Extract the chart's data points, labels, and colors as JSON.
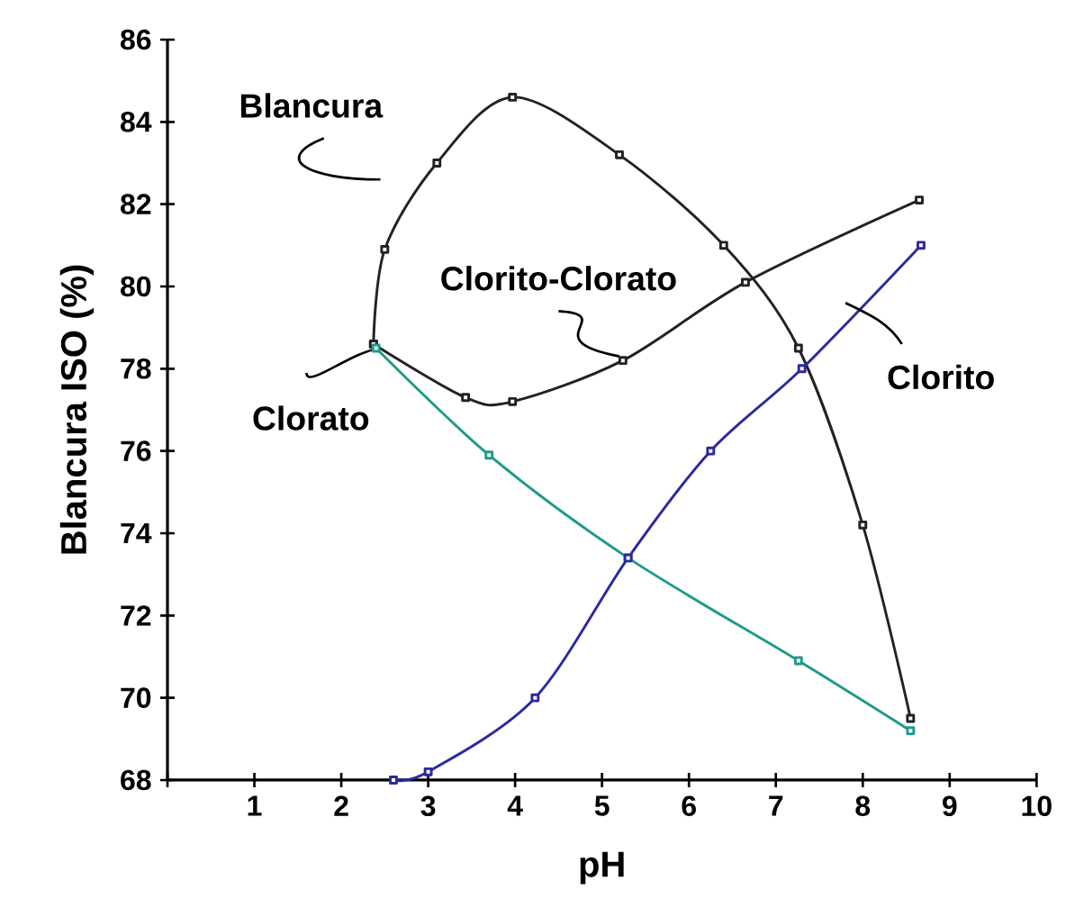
{
  "chart_data": {
    "type": "line",
    "xlabel": "pH",
    "ylabel": "Blancura ISO (%)",
    "xlim": [
      0,
      10
    ],
    "ylim": [
      68,
      86
    ],
    "xticks": [
      {
        "value": 0,
        "label": null
      },
      1,
      2,
      3,
      4,
      5,
      6,
      7,
      8,
      9,
      10
    ],
    "yticks": [
      68,
      70,
      72,
      74,
      76,
      78,
      80,
      82,
      84,
      86
    ],
    "marker": "square",
    "line_style": "solid",
    "series": [
      {
        "name": "Blancura",
        "color": "#222222",
        "x": [
          2.37,
          2.5,
          3.1,
          3.97,
          5.2,
          6.4,
          7.26,
          8.0,
          8.55
        ],
        "values": [
          78.6,
          80.9,
          83.0,
          84.6,
          83.2,
          81.0,
          78.5,
          74.2,
          69.5
        ]
      },
      {
        "name": "Clorito-Clorato",
        "color": "#222222",
        "x": [
          2.37,
          3.43,
          3.97,
          5.24,
          6.65,
          8.65
        ],
        "values": [
          78.6,
          77.3,
          77.2,
          78.2,
          80.1,
          82.1
        ]
      },
      {
        "name": "Clorato",
        "color": "#1f9a8a",
        "x": [
          2.4,
          3.7,
          5.3,
          7.26,
          8.55
        ],
        "values": [
          78.5,
          75.9,
          73.4,
          70.9,
          69.2
        ]
      },
      {
        "name": "Clorito",
        "color": "#2a2aa0",
        "x": [
          2.6,
          3.0,
          4.23,
          5.3,
          6.25,
          7.3,
          8.67
        ],
        "values": [
          68.0,
          68.2,
          70.0,
          73.4,
          76.0,
          78.0,
          81.0
        ]
      }
    ]
  }
}
